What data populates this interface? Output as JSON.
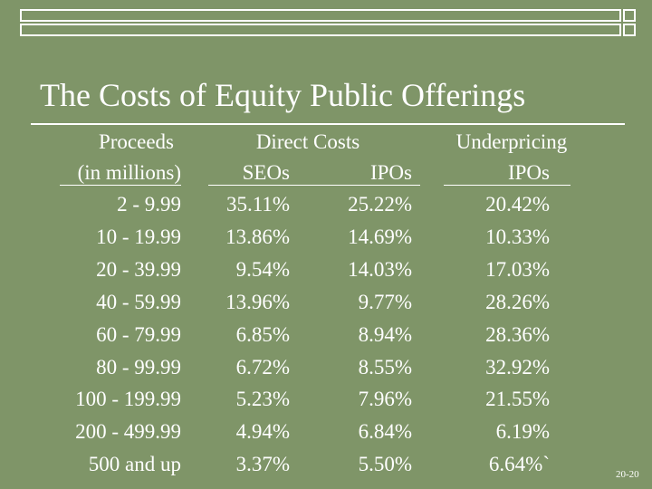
{
  "title": "The Costs of Equity Public Offerings",
  "headers": {
    "proceeds": "Proceeds",
    "proceeds_sub": "(in millions)",
    "direct_costs": "Direct Costs",
    "seos": "SEOs",
    "ipos": "IPOs",
    "underpricing": "Underpricing",
    "underpricing_ipos": "IPOs"
  },
  "rows": [
    {
      "proceeds": "2 - 9.99",
      "seo": "35.11%",
      "ipo": "25.22%",
      "under": "20.42%"
    },
    {
      "proceeds": "10 - 19.99",
      "seo": "13.86%",
      "ipo": "14.69%",
      "under": "10.33%"
    },
    {
      "proceeds": "20 - 39.99",
      "seo": "9.54%",
      "ipo": "14.03%",
      "under": "17.03%"
    },
    {
      "proceeds": "40 - 59.99",
      "seo": "13.96%",
      "ipo": "9.77%",
      "under": "28.26%"
    },
    {
      "proceeds": "60 - 79.99",
      "seo": "6.85%",
      "ipo": "8.94%",
      "under": "28.36%"
    },
    {
      "proceeds": "80 - 99.99",
      "seo": "6.72%",
      "ipo": "8.55%",
      "under": "32.92%"
    },
    {
      "proceeds": "100 - 199.99",
      "seo": "5.23%",
      "ipo": "7.96%",
      "under": "21.55%"
    },
    {
      "proceeds": "200 - 499.99",
      "seo": "4.94%",
      "ipo": "6.84%",
      "under": "6.19%"
    },
    {
      "proceeds": "500 and up",
      "seo": "3.37%",
      "ipo": "5.50%",
      "under": "6.64%`"
    }
  ],
  "page_number": "20-20"
}
